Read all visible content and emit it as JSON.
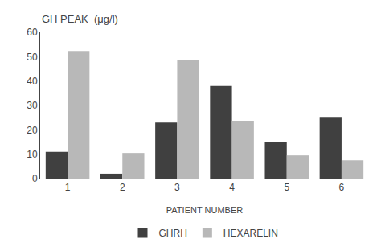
{
  "chart_data": {
    "type": "bar",
    "xlabel": "PATIENT NUMBER",
    "ylabel": "GH PEAK  (μg/l)",
    "categories": [
      "1",
      "2",
      "3",
      "4",
      "5",
      "6"
    ],
    "series": [
      {
        "name": "GHRH",
        "color": "#404040",
        "values": [
          11,
          2,
          23,
          38,
          15,
          25
        ]
      },
      {
        "name": "HEXARELIN",
        "color": "#b8b8b8",
        "values": [
          52,
          10.5,
          48.5,
          23.5,
          9.5,
          7.5
        ]
      }
    ],
    "ylim": [
      0,
      60
    ],
    "yticks": [
      0,
      10,
      20,
      30,
      40,
      50,
      60
    ],
    "grid": false,
    "legend": "bottom"
  }
}
